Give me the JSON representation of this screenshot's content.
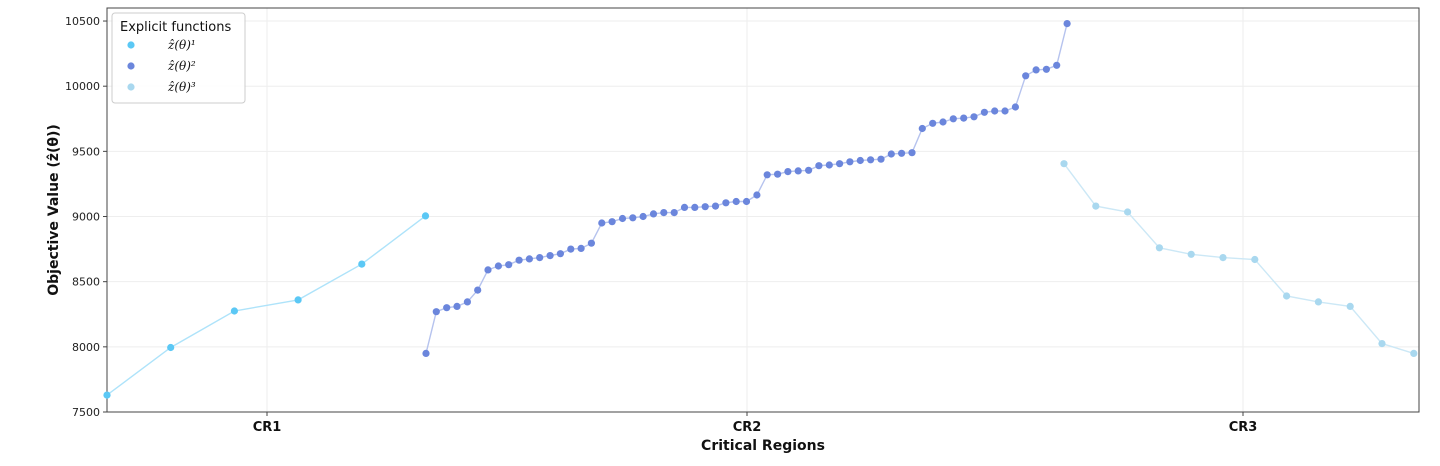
{
  "chart_data": {
    "type": "scatter",
    "title": "",
    "xlabel": "Critical Regions",
    "ylabel": "Objective Value (ẑ(θ))",
    "ylim": [
      7500,
      10600
    ],
    "yticks": [
      7500,
      8000,
      8500,
      9000,
      9500,
      10000,
      10500
    ],
    "categories": [
      "CR1",
      "CR2",
      "CR3"
    ],
    "grid": true,
    "legend": {
      "title": "Explicit functions",
      "placement": "top-left"
    },
    "series": [
      {
        "name": "ẑ(θ)¹",
        "color": "#5bc8f5",
        "line_color": "#aee3fa",
        "region": "CR1",
        "values": [
          7630,
          7995,
          8275,
          8360,
          8635,
          9005
        ]
      },
      {
        "name": "ẑ(θ)²",
        "color": "#6b86dc",
        "line_color": "#b6c3ee",
        "region": "CR2",
        "values": [
          7950,
          8270,
          8300,
          8310,
          8345,
          8435,
          8590,
          8620,
          8630,
          8665,
          8675,
          8685,
          8700,
          8715,
          8750,
          8755,
          8795,
          8950,
          8960,
          8985,
          8990,
          9000,
          9020,
          9030,
          9030,
          9070,
          9070,
          9075,
          9080,
          9105,
          9115,
          9115,
          9165,
          9320,
          9325,
          9345,
          9350,
          9355,
          9390,
          9395,
          9405,
          9420,
          9430,
          9435,
          9440,
          9480,
          9485,
          9490,
          9675,
          9715,
          9725,
          9750,
          9755,
          9765,
          9800,
          9810,
          9810,
          9840,
          10080,
          10125,
          10130,
          10160,
          10480
        ]
      },
      {
        "name": "ẑ(θ)³",
        "color": "#a9d8ef",
        "line_color": "#cce8f6",
        "region": "CR3",
        "values": [
          9405,
          9080,
          9035,
          8760,
          8710,
          8685,
          8670,
          8390,
          8345,
          8310,
          8025,
          7950
        ]
      }
    ]
  }
}
